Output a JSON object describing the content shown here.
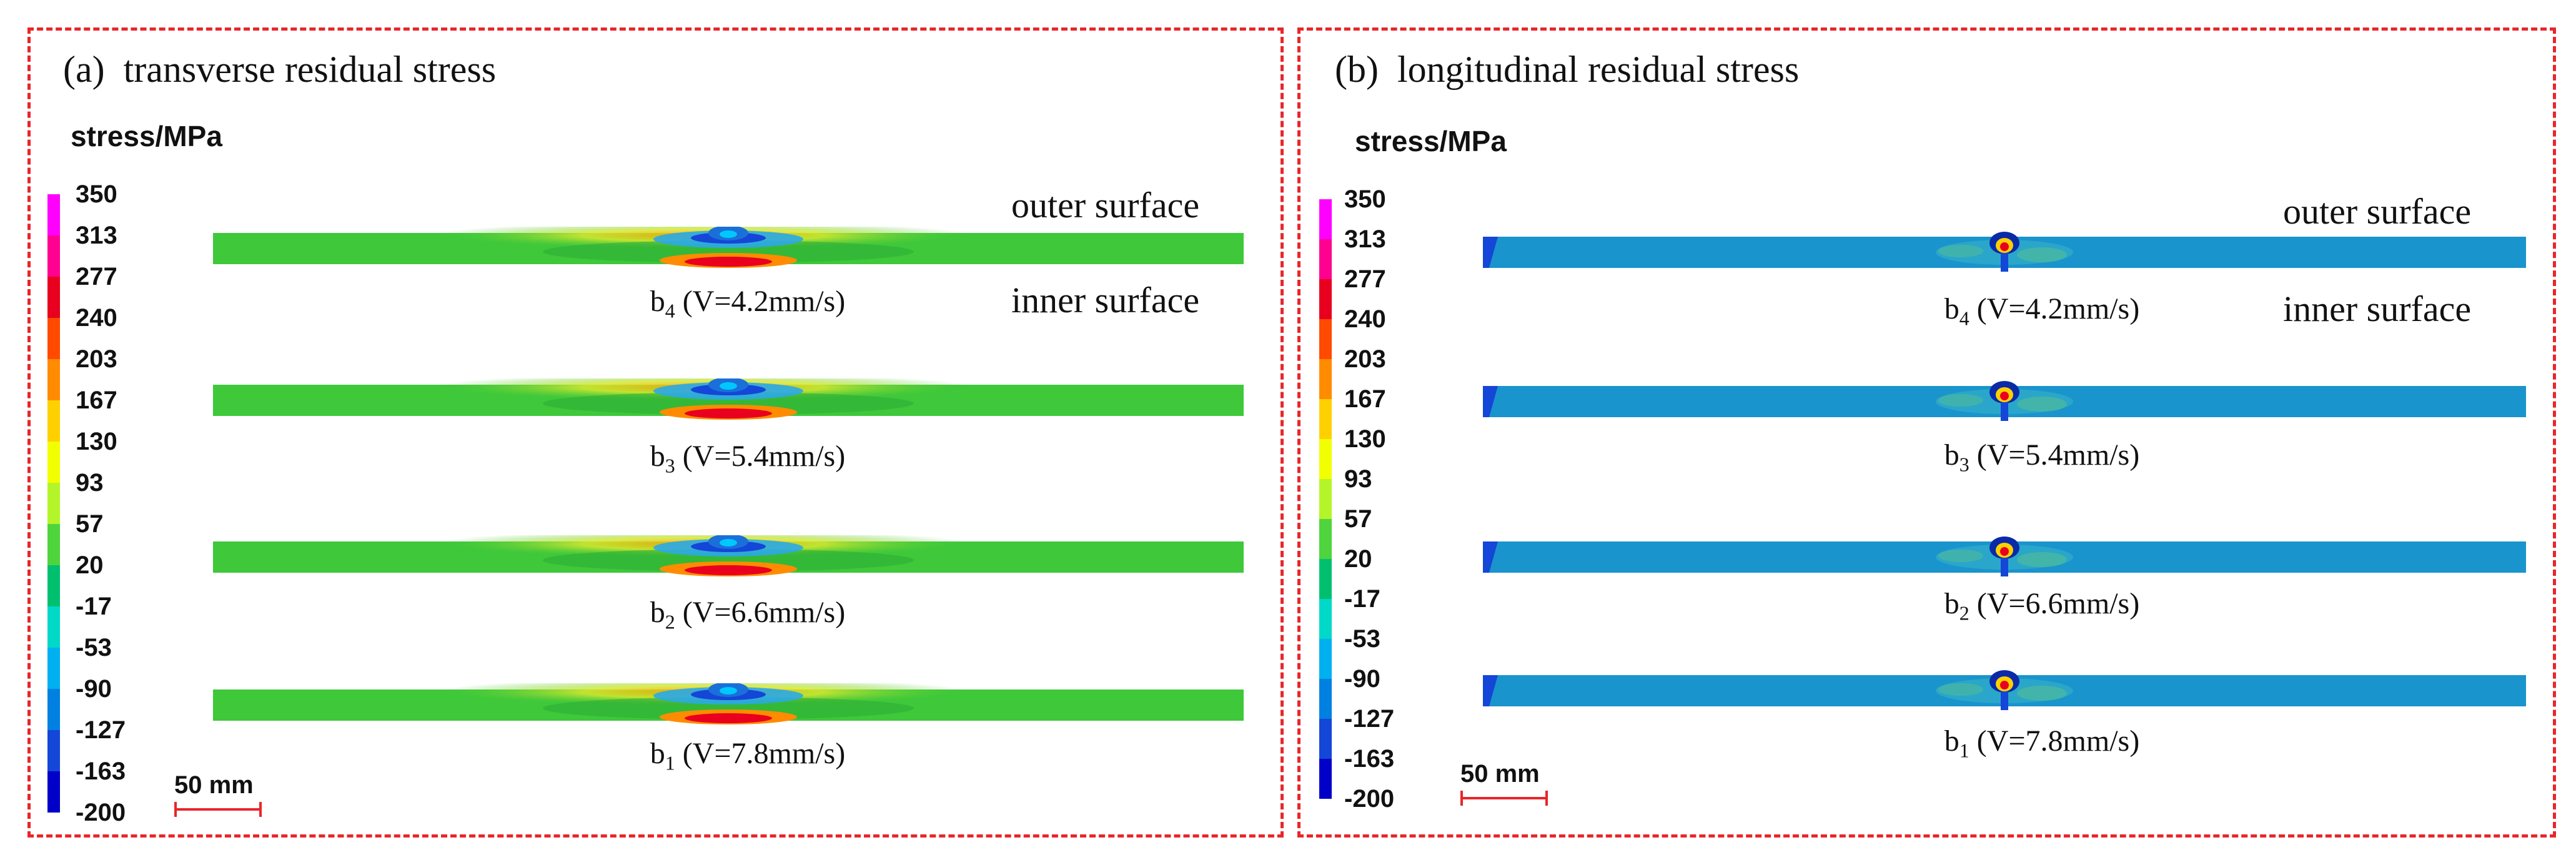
{
  "colorbar": {
    "label": "stress/MPa",
    "ticks": [
      "350",
      "313",
      "277",
      "240",
      "203",
      "167",
      "130",
      "93",
      "57",
      "20",
      "-17",
      "-53",
      "-90",
      "-127",
      "-163",
      "-200"
    ],
    "colors": [
      "#ff00ff",
      "#ff0090",
      "#e8001e",
      "#ff4a00",
      "#ff8c00",
      "#ffd000",
      "#f2ff00",
      "#b4f52a",
      "#4fd43d",
      "#00c070",
      "#00d8c8",
      "#00b0f0",
      "#0080e0",
      "#1446d8",
      "#0000c8"
    ]
  },
  "panel_a": {
    "tag": "(a)",
    "title": "transverse residual stress",
    "outer_label": "outer surface",
    "inner_label": "inner surface",
    "scale_label": "50 mm",
    "plates": [
      {
        "b": "b",
        "sub": "4",
        "cond": "(V=4.2mm/s)"
      },
      {
        "b": "b",
        "sub": "3",
        "cond": "(V=5.4mm/s)"
      },
      {
        "b": "b",
        "sub": "2",
        "cond": "(V=6.6mm/s)"
      },
      {
        "b": "b",
        "sub": "1",
        "cond": "(V=7.8mm/s)"
      }
    ]
  },
  "panel_b": {
    "tag": "(b)",
    "title": "longitudinal residual stress",
    "outer_label": "outer surface",
    "inner_label": "inner surface",
    "scale_label": "50 mm",
    "plates": [
      {
        "b": "b",
        "sub": "4",
        "cond": "(V=4.2mm/s)"
      },
      {
        "b": "b",
        "sub": "3",
        "cond": "(V=5.4mm/s)"
      },
      {
        "b": "b",
        "sub": "2",
        "cond": "(V=6.6mm/s)"
      },
      {
        "b": "b",
        "sub": "1",
        "cond": "(V=7.8mm/s)"
      }
    ]
  },
  "colors": {
    "border": "#e8262a",
    "scale_bar": "#e8262a",
    "transverse_base": "#3ec83a",
    "longitudinal_base": "#1a94cc"
  }
}
